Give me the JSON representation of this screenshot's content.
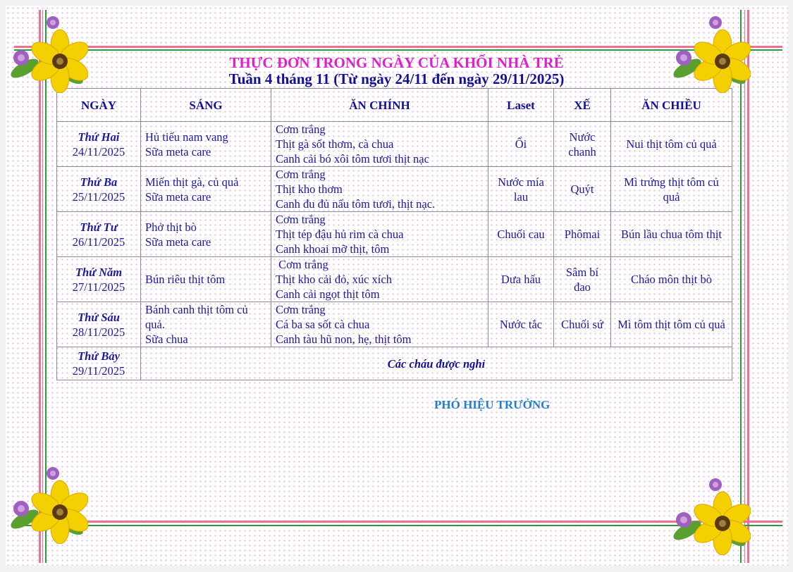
{
  "title": "THỰC ĐƠN TRONG NGÀY CỦA KHỐI NHÀ TRẺ",
  "subtitle": "Tuần 4 tháng 11 (Từ ngày 24/11 đến ngày 29/11/2025)",
  "headers": [
    "NGÀY",
    "SÁNG",
    "ĂN CHÍNH",
    "Laset",
    "XẾ",
    "ĂN CHIỀU"
  ],
  "rows": [
    {
      "day": "Thứ Hai",
      "date": "24/11/2025",
      "sang": [
        "Hủ tiếu nam vang",
        "Sữa meta care"
      ],
      "chinh": [
        "Cơm trắng",
        "Thịt gà sốt thơm, cà chua",
        "Canh cải bó xôi tôm tươi thịt nạc"
      ],
      "laset": "Ổi",
      "xe": "Nước chanh",
      "chieu": "Nui thịt tôm củ quả"
    },
    {
      "day": "Thứ Ba",
      "date": "25/11/2025",
      "sang": [
        "Miến thịt gà, củ quả",
        "Sữa meta care"
      ],
      "chinh": [
        "Cơm trắng",
        "Thịt kho thơm",
        "Canh đu đủ nấu tôm tươi, thịt nạc."
      ],
      "laset": "Nước mía lau",
      "xe": "Quýt",
      "chieu": "Mì trứng thịt tôm củ quả"
    },
    {
      "day": "Thứ Tư",
      "date": "26/11/2025",
      "sang": [
        "Phở thịt bò",
        "Sữa meta care"
      ],
      "chinh": [
        "Cơm trắng",
        "Thịt tép đậu hủ rim cà chua",
        "Canh khoai mỡ thịt, tôm"
      ],
      "laset": "Chuối cau",
      "xe": "Phômai",
      "chieu": "Bún lầu chua tôm thịt"
    },
    {
      "day": "Thứ Năm",
      "date": "27/11/2025",
      "sang": [
        "Bún riêu thịt tôm",
        ""
      ],
      "chinh": [
        " Cơm trắng",
        "Thịt kho cải đỏ, xúc xích",
        "Canh cải ngọt thịt tôm"
      ],
      "laset": "Dưa hấu",
      "xe": "Sâm bí đao",
      "chieu": "Cháo môn thịt bò"
    },
    {
      "day": "Thứ Sáu",
      "date": "28/11/2025",
      "sang": [
        "Bánh canh thịt tôm củ quả.",
        "Sữa chua"
      ],
      "chinh": [
        "Cơm trắng",
        "Cá ba sa sốt cà chua",
        "Canh tàu hũ non, hẹ, thịt tôm"
      ],
      "laset": "Nước tắc",
      "xe": "Chuối sứ",
      "chieu": "Mì tôm thịt tôm củ quả"
    }
  ],
  "saturday": {
    "day": "Thứ Bảy",
    "date": "29/11/2025",
    "note": "Các cháu được nghỉ"
  },
  "signature": "PHÓ HIỆU TRƯỞNG",
  "colors": {
    "title": "#e020c8",
    "subtitle": "#10109a",
    "text": "#1a1aa0",
    "signature": "#1f7fd0",
    "frame_pink": "#f07090",
    "frame_green": "#2a9a3a"
  }
}
